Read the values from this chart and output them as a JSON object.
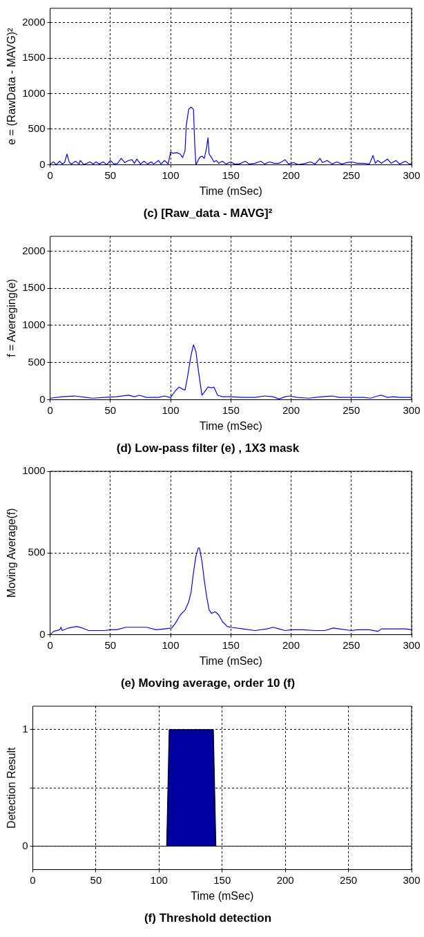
{
  "chart_data": [
    {
      "type": "line",
      "title": "(c) [Raw_data - MAVG]²",
      "xlabel": "Time (mSec)",
      "ylabel": "e = (RawData - MAVG)²",
      "color": "#0000ff",
      "grid": true,
      "xlim": [
        0,
        300
      ],
      "xticks": [
        0,
        50,
        100,
        150,
        200,
        250,
        300
      ],
      "ylim": [
        0,
        2200
      ],
      "yticks": [
        0,
        500,
        1000,
        1500,
        2000
      ],
      "x": [
        0,
        3,
        5,
        8,
        10,
        12,
        14,
        16,
        18,
        21,
        24,
        25,
        28,
        33,
        36,
        38,
        41,
        44,
        47,
        50,
        53,
        56,
        59,
        62,
        65,
        68,
        70,
        72,
        75,
        78,
        81,
        84,
        86,
        90,
        92,
        95,
        98,
        100,
        102,
        105,
        108,
        110,
        112,
        113,
        115,
        117,
        119,
        120,
        121,
        124,
        126,
        128,
        130,
        131,
        132,
        134,
        136,
        138,
        140,
        143,
        146,
        150,
        153,
        157,
        162,
        165,
        170,
        175,
        178,
        182,
        186,
        190,
        195,
        198,
        202,
        206,
        212,
        216,
        220,
        224,
        226,
        230,
        234,
        238,
        242,
        246,
        250,
        255,
        260,
        265,
        268,
        270,
        272,
        275,
        280,
        283,
        287,
        290,
        295,
        298,
        300
      ],
      "values": [
        10,
        40,
        0,
        50,
        10,
        30,
        150,
        30,
        10,
        50,
        10,
        60,
        0,
        40,
        10,
        40,
        10,
        40,
        0,
        60,
        10,
        20,
        90,
        30,
        60,
        70,
        20,
        80,
        10,
        50,
        10,
        40,
        10,
        60,
        10,
        60,
        10,
        180,
        160,
        170,
        150,
        100,
        200,
        550,
        780,
        810,
        780,
        300,
        0,
        100,
        120,
        90,
        250,
        380,
        150,
        100,
        40,
        60,
        20,
        50,
        10,
        40,
        10,
        10,
        50,
        10,
        20,
        50,
        10,
        40,
        20,
        20,
        70,
        10,
        30,
        0,
        20,
        40,
        10,
        90,
        30,
        60,
        10,
        40,
        10,
        30,
        40,
        20,
        20,
        10,
        130,
        20,
        60,
        20,
        80,
        20,
        60,
        10,
        50,
        10,
        10
      ]
    },
    {
      "type": "line",
      "title": "(d) Low-pass filter (e) , 1X3 mask",
      "xlabel": "Time (mSec)",
      "ylabel": "f = Avereging(e)",
      "color": "#0000ff",
      "grid": true,
      "xlim": [
        0,
        300
      ],
      "xticks": [
        0,
        50,
        100,
        150,
        200,
        250,
        300
      ],
      "ylim": [
        0,
        2200
      ],
      "yticks": [
        0,
        500,
        1000,
        1500,
        2000
      ],
      "x": [
        0,
        10,
        20,
        30,
        35,
        45,
        55,
        65,
        70,
        74,
        80,
        90,
        95,
        99,
        100,
        104,
        107,
        110,
        112,
        114,
        117,
        119,
        121,
        123,
        126,
        128,
        131,
        134,
        136,
        139,
        143,
        150,
        160,
        170,
        178,
        185,
        190,
        195,
        199,
        205,
        215,
        220,
        226,
        234,
        240,
        250,
        260,
        266,
        272,
        275,
        280,
        285,
        290,
        300
      ],
      "values": [
        20,
        40,
        50,
        30,
        20,
        30,
        40,
        60,
        40,
        60,
        30,
        30,
        50,
        30,
        30,
        120,
        170,
        140,
        130,
        300,
        600,
        740,
        650,
        400,
        60,
        100,
        170,
        160,
        170,
        60,
        40,
        40,
        30,
        30,
        50,
        40,
        10,
        40,
        50,
        30,
        20,
        30,
        40,
        50,
        30,
        30,
        30,
        20,
        50,
        60,
        30,
        40,
        30,
        30
      ]
    },
    {
      "type": "line",
      "title": "(e) Moving average, order 10 (f)",
      "xlabel": "Time (mSec)",
      "ylabel": "Moving Average(f)",
      "color": "#0000ff",
      "grid": true,
      "xlim": [
        0,
        300
      ],
      "xticks": [
        0,
        50,
        100,
        150,
        200,
        250,
        300
      ],
      "ylim": [
        0,
        1000
      ],
      "yticks": [
        0,
        500,
        1000
      ],
      "x": [
        0,
        3,
        8,
        9,
        10,
        15,
        22,
        27,
        32,
        45,
        50,
        55,
        63,
        75,
        80,
        88,
        95,
        101,
        104,
        108,
        112,
        115,
        117,
        119,
        121,
        123,
        124,
        126,
        128,
        130,
        132,
        134,
        137,
        140,
        143,
        147,
        150,
        160,
        170,
        180,
        185,
        190,
        195,
        200,
        210,
        220,
        228,
        235,
        240,
        250,
        255,
        265,
        272,
        275,
        285,
        295,
        300
      ],
      "values": [
        0,
        20,
        30,
        45,
        25,
        40,
        50,
        40,
        25,
        25,
        30,
        30,
        45,
        45,
        45,
        30,
        35,
        40,
        70,
        120,
        150,
        200,
        260,
        380,
        480,
        530,
        530,
        450,
        330,
        230,
        150,
        130,
        140,
        120,
        80,
        50,
        45,
        35,
        25,
        35,
        45,
        35,
        25,
        30,
        30,
        25,
        25,
        40,
        35,
        25,
        30,
        30,
        20,
        35,
        35,
        35,
        30
      ]
    },
    {
      "type": "area",
      "title": "(f) Threshold detection",
      "xlabel": "Time (mSec)",
      "ylabel": "Detection Result",
      "color": "#0000a0",
      "grid": true,
      "xlim": [
        0,
        300
      ],
      "xticks": [
        0,
        50,
        100,
        150,
        200,
        250,
        300
      ],
      "ylim": [
        -0.2,
        1.2
      ],
      "yticks": [
        0,
        {
          "value": 0.5,
          "label": null
        },
        1
      ],
      "x": [
        106,
        107,
        108,
        143,
        144,
        145
      ],
      "values": [
        0,
        0.5,
        1,
        1,
        0.5,
        0
      ],
      "ref_lines": [
        {
          "axis": "y",
          "value": 0
        }
      ]
    }
  ]
}
